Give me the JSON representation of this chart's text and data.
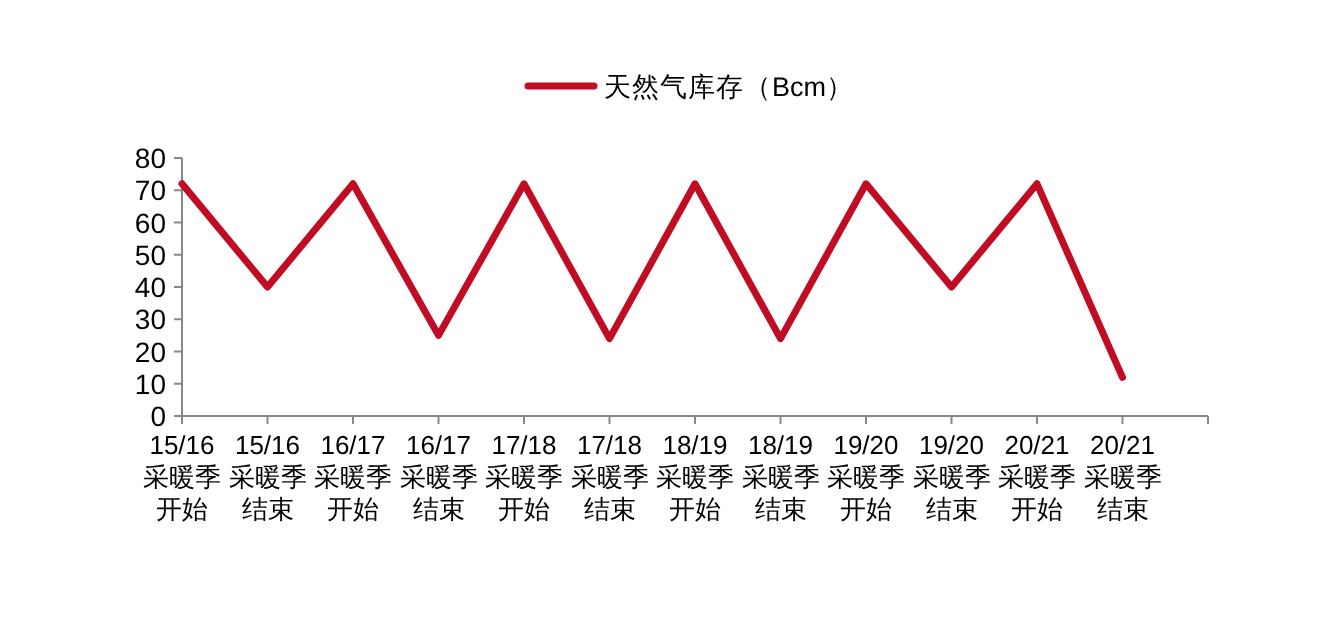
{
  "chart_data": {
    "type": "line",
    "categories": [
      "15/16\n采暖季开始",
      "15/16\n采暖季结束",
      "16/17\n采暖季开始",
      "16/17\n采暖季结束",
      "17/18\n采暖季开始",
      "17/18\n采暖季结束",
      "18/19\n采暖季开始",
      "18/19\n采暖季结束",
      "19/20\n采暖季开始",
      "19/20\n采暖季结束",
      "20/21\n采暖季开始",
      "20/21\n采暖季结束"
    ],
    "series": [
      {
        "name": "天然气库存（Bcm）",
        "color": "#c00d23",
        "values": [
          72,
          40,
          72,
          25,
          72,
          24,
          72,
          24,
          72,
          40,
          72,
          12
        ]
      }
    ],
    "ylim": [
      0,
      80
    ],
    "yticks": [
      0,
      10,
      20,
      30,
      40,
      50,
      60,
      70,
      80
    ],
    "legend": "top",
    "grid": false,
    "marker": "none",
    "line_style": "solid"
  }
}
